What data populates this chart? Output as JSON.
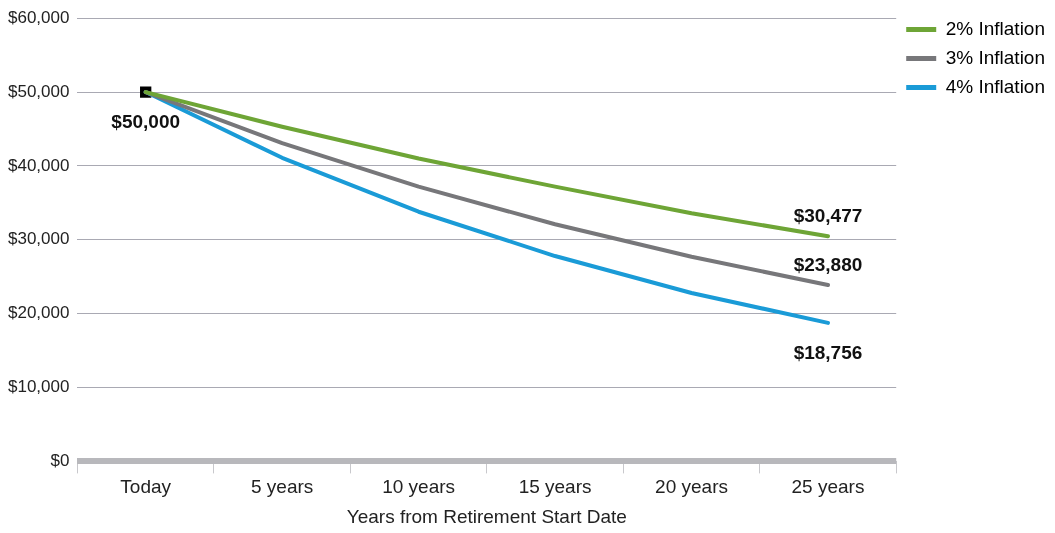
{
  "chart_data": {
    "type": "line",
    "xlabel": "Years from Retirement Start Date",
    "categories": [
      "Today",
      "5 years",
      "10 years",
      "15 years",
      "20 years",
      "25 years"
    ],
    "series": [
      {
        "name": "2% Inflation",
        "color": "#6ea536",
        "values": [
          50000,
          45300,
          41000,
          37200,
          33600,
          30477
        ],
        "value_labels": [
          null,
          null,
          null,
          null,
          null,
          "$30,477"
        ]
      },
      {
        "name": "3% Inflation",
        "color": "#77777a",
        "values": [
          50000,
          43100,
          37200,
          32100,
          27700,
          23880
        ],
        "value_labels": [
          null,
          null,
          null,
          null,
          null,
          "$23,880"
        ]
      },
      {
        "name": "4% Inflation",
        "color": "#1a9bd7",
        "values": [
          50000,
          41100,
          33800,
          27800,
          22800,
          18756
        ],
        "value_labels": [
          null,
          null,
          null,
          null,
          null,
          "$18,756"
        ]
      },
      {
        "type": "scatter",
        "color": "#000000",
        "marker": "square",
        "values": [
          50000,
          null,
          null,
          null,
          null,
          null
        ],
        "value_labels": [
          "$50,000",
          null,
          null,
          null,
          null,
          null
        ]
      }
    ],
    "ylim": [
      0,
      60000
    ],
    "yticks": [
      {
        "value": 0,
        "label": "$0"
      },
      {
        "value": 10000,
        "label": "$10,000"
      },
      {
        "value": 20000,
        "label": "$20,000"
      },
      {
        "value": 30000,
        "label": "$30,000"
      },
      {
        "value": 40000,
        "label": "$40,000"
      },
      {
        "value": 50000,
        "label": "$50,000"
      },
      {
        "value": 60000,
        "label": "$60,000"
      }
    ],
    "grid": "y",
    "legend": "top right",
    "marker": "none",
    "line_style": "solid"
  }
}
